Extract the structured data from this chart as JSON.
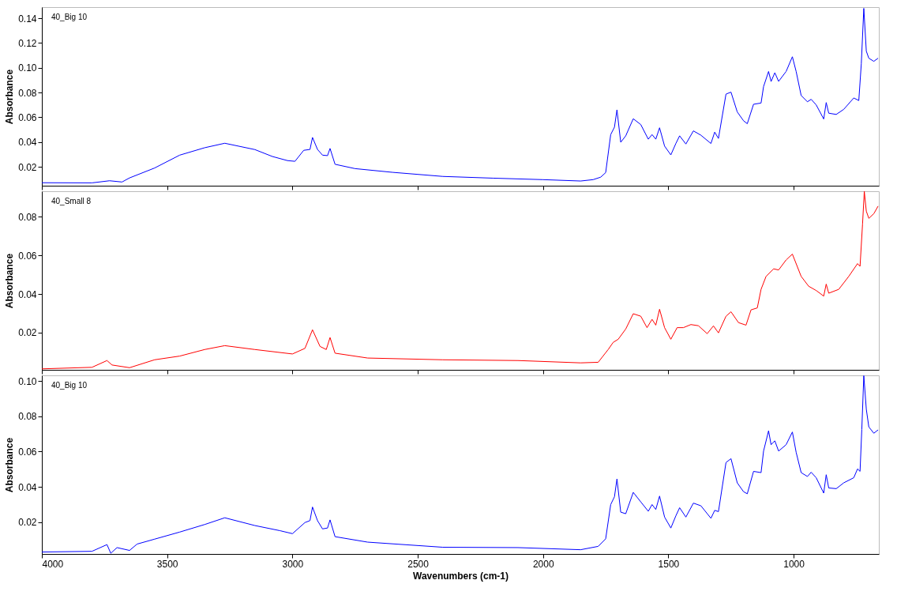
{
  "chart_data": [
    {
      "type": "line",
      "annotations": [
        "40_Big 10"
      ],
      "ylabel": "Absorbance",
      "xlim": [
        4000,
        660
      ],
      "xticks": [
        4000,
        3500,
        3000,
        2500,
        2000,
        1500,
        1000
      ],
      "ylim": [
        0.0047,
        0.149
      ],
      "yticks": [
        0.02,
        0.04,
        0.06,
        0.08,
        {
          "value": 0.1,
          "label": "0.10"
        },
        0.12,
        0.14
      ],
      "tick_labels": "y",
      "grid": false,
      "line_style": "solid",
      "x": [
        4000,
        3800,
        3730,
        3680,
        3650,
        3550,
        3450,
        3350,
        3270,
        3150,
        3080,
        3020,
        2990,
        2955,
        2930,
        2920,
        2900,
        2880,
        2860,
        2850,
        2830,
        2750,
        2600,
        2400,
        2200,
        2000,
        1850,
        1800,
        1770,
        1750,
        1730,
        1715,
        1705,
        1690,
        1670,
        1640,
        1610,
        1580,
        1565,
        1550,
        1535,
        1515,
        1490,
        1470,
        1455,
        1430,
        1400,
        1370,
        1330,
        1315,
        1300,
        1270,
        1250,
        1225,
        1200,
        1185,
        1160,
        1130,
        1120,
        1100,
        1090,
        1075,
        1060,
        1030,
        1005,
        990,
        970,
        945,
        930,
        910,
        880,
        870,
        860,
        830,
        800,
        760,
        740,
        730,
        720,
        710,
        700,
        680,
        663
      ],
      "series": [
        {
          "color": "#0000ff",
          "values": [
            0.0071,
            0.007,
            0.0087,
            0.0077,
            0.011,
            0.019,
            0.0294,
            0.0354,
            0.039,
            0.0339,
            0.0283,
            0.025,
            0.0244,
            0.0333,
            0.034,
            0.0437,
            0.034,
            0.0294,
            0.029,
            0.0348,
            0.022,
            0.0185,
            0.0155,
            0.0122,
            0.0108,
            0.0096,
            0.0085,
            0.0096,
            0.0116,
            0.0153,
            0.046,
            0.052,
            0.066,
            0.0398,
            0.045,
            0.0588,
            0.0541,
            0.0423,
            0.046,
            0.0423,
            0.0515,
            0.0367,
            0.0296,
            0.0388,
            0.045,
            0.0384,
            0.049,
            0.0455,
            0.0388,
            0.048,
            0.0429,
            0.0787,
            0.0803,
            0.0643,
            0.0572,
            0.0548,
            0.0705,
            0.0715,
            0.0848,
            0.097,
            0.0889,
            0.096,
            0.089,
            0.097,
            0.1089,
            0.097,
            0.0776,
            0.0725,
            0.0745,
            0.07,
            0.0586,
            0.0719,
            0.0633,
            0.0623,
            0.0664,
            0.0756,
            0.0735,
            0.1032,
            0.148,
            0.1134,
            0.1077,
            0.1052,
            0.1077
          ]
        }
      ]
    },
    {
      "type": "line",
      "annotations": [
        "40_Small 8"
      ],
      "ylabel": "Absorbance",
      "xlim": [
        4000,
        660
      ],
      "xticks": [
        4000,
        3500,
        3000,
        2500,
        2000,
        1500,
        1000
      ],
      "ylim": [
        0.0008,
        0.0931
      ],
      "yticks": [
        0.02,
        0.04,
        0.06,
        0.08
      ],
      "tick_labels": "y",
      "grid": false,
      "line_style": "solid",
      "x": [
        4000,
        3800,
        3740,
        3720,
        3650,
        3550,
        3450,
        3350,
        3270,
        3150,
        3000,
        2950,
        2920,
        2890,
        2865,
        2850,
        2830,
        2700,
        2400,
        2100,
        1850,
        1780,
        1740,
        1720,
        1700,
        1670,
        1640,
        1610,
        1585,
        1565,
        1550,
        1535,
        1515,
        1490,
        1465,
        1440,
        1410,
        1380,
        1345,
        1320,
        1300,
        1270,
        1250,
        1220,
        1190,
        1170,
        1145,
        1130,
        1110,
        1080,
        1060,
        1030,
        1005,
        970,
        940,
        910,
        880,
        870,
        860,
        820,
        780,
        745,
        735,
        725,
        718,
        710,
        700,
        680,
        663
      ],
      "series": [
        {
          "color": "#ff0000",
          "values": [
            0.0013,
            0.0021,
            0.0056,
            0.0033,
            0.0019,
            0.006,
            0.0079,
            0.0113,
            0.0133,
            0.0113,
            0.009,
            0.0119,
            0.0215,
            0.0129,
            0.0113,
            0.0175,
            0.0094,
            0.0069,
            0.006,
            0.0056,
            0.0044,
            0.0047,
            0.0113,
            0.015,
            0.0166,
            0.0219,
            0.0298,
            0.0285,
            0.0226,
            0.0269,
            0.0239,
            0.0321,
            0.0226,
            0.0166,
            0.0226,
            0.0226,
            0.0242,
            0.0236,
            0.0195,
            0.0235,
            0.0199,
            0.0285,
            0.0308,
            0.0252,
            0.0239,
            0.0318,
            0.0328,
            0.0424,
            0.0491,
            0.053,
            0.0524,
            0.0576,
            0.0606,
            0.0491,
            0.044,
            0.0418,
            0.0389,
            0.0451,
            0.0404,
            0.0424,
            0.0491,
            0.0557,
            0.0543,
            0.0762,
            0.093,
            0.0828,
            0.0791,
            0.0815,
            0.0854
          ]
        }
      ]
    },
    {
      "type": "line",
      "annotations": [
        "40_Big 10"
      ],
      "xlabel": "Wavenumbers (cm-1)",
      "ylabel": "Absorbance",
      "xlim": [
        4000,
        660
      ],
      "xticks": [
        4000,
        3500,
        3000,
        2500,
        2000,
        1500,
        1000
      ],
      "ylim": [
        0.002,
        0.1032
      ],
      "yticks": [
        0.02,
        0.04,
        0.06,
        0.08,
        {
          "value": 0.1,
          "label": "0.10"
        }
      ],
      "grid": false,
      "line_style": "solid",
      "x": [
        4000,
        3800,
        3740,
        3725,
        3700,
        3650,
        3620,
        3550,
        3450,
        3350,
        3270,
        3150,
        3050,
        3000,
        2950,
        2930,
        2920,
        2900,
        2880,
        2860,
        2850,
        2830,
        2700,
        2400,
        2100,
        1850,
        1780,
        1750,
        1730,
        1715,
        1705,
        1690,
        1670,
        1640,
        1610,
        1580,
        1565,
        1550,
        1535,
        1515,
        1490,
        1470,
        1455,
        1430,
        1400,
        1370,
        1330,
        1315,
        1300,
        1270,
        1250,
        1225,
        1200,
        1185,
        1160,
        1130,
        1120,
        1100,
        1090,
        1075,
        1060,
        1030,
        1005,
        990,
        970,
        945,
        930,
        910,
        880,
        870,
        860,
        830,
        800,
        760,
        745,
        735,
        728,
        720,
        710,
        700,
        680,
        663
      ],
      "series": [
        {
          "color": "#0000ff",
          "values": [
            0.0031,
            0.0035,
            0.0073,
            0.0024,
            0.0056,
            0.004,
            0.0076,
            0.0104,
            0.0144,
            0.0187,
            0.0225,
            0.0181,
            0.0152,
            0.0135,
            0.0198,
            0.0209,
            0.0286,
            0.0209,
            0.0162,
            0.0167,
            0.0213,
            0.0118,
            0.0087,
            0.0058,
            0.0056,
            0.0044,
            0.0063,
            0.0106,
            0.03,
            0.0344,
            0.0445,
            0.0257,
            0.0248,
            0.0369,
            0.0315,
            0.0262,
            0.03,
            0.0272,
            0.0348,
            0.0229,
            0.0167,
            0.0236,
            0.0282,
            0.0229,
            0.0308,
            0.0293,
            0.0222,
            0.0267,
            0.026,
            0.0538,
            0.056,
            0.0423,
            0.0373,
            0.0361,
            0.0488,
            0.0481,
            0.0603,
            0.0718,
            0.0639,
            0.0661,
            0.0603,
            0.0639,
            0.0711,
            0.0596,
            0.0481,
            0.0459,
            0.0483,
            0.0452,
            0.0365,
            0.0469,
            0.0394,
            0.039,
            0.0423,
            0.0452,
            0.0502,
            0.0488,
            0.0725,
            0.103,
            0.084,
            0.074,
            0.0704,
            0.0723
          ]
        }
      ]
    }
  ]
}
